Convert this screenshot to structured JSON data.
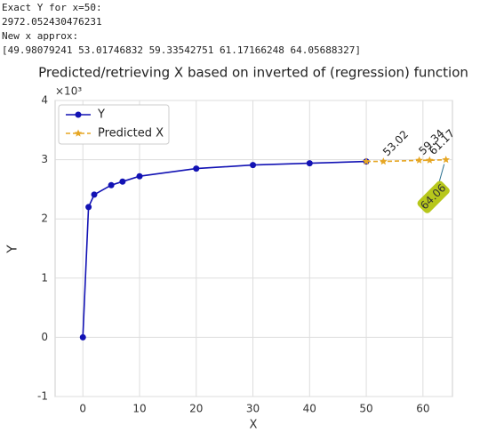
{
  "console": [
    "Exact Y for x=50:",
    "2972.052430476231",
    "New x approx:",
    "[49.98079241 53.01746832 59.33542751 61.17166248 64.05688327]"
  ],
  "chart_data": {
    "type": "line",
    "title": "Predicted/retrieving X based on inverted of (regression) function",
    "x_label": "X",
    "y_label": "Y",
    "y_offset_label": "×10³",
    "xlim": [
      -4.9,
      65.2
    ],
    "xticks": [
      0,
      10,
      20,
      30,
      40,
      50,
      60
    ],
    "ylim": [
      -1,
      4
    ],
    "yticks": [
      -1,
      0,
      1,
      2,
      3,
      4
    ],
    "grid": true,
    "legend_loc": "upper left",
    "series": [
      {
        "name": "Y",
        "color": "#1212b4",
        "marker": "circle",
        "dashed": false,
        "x": [
          0,
          1,
          2,
          5,
          7,
          10,
          20,
          30,
          40,
          50
        ],
        "values": [
          0,
          2.2,
          2.41,
          2.57,
          2.63,
          2.72,
          2.85,
          2.91,
          2.94,
          2.97
        ]
      },
      {
        "name": "Predicted X",
        "color": "#e6a623",
        "marker": "star",
        "dashed": true,
        "x": [
          49.98079241,
          53.01746832,
          59.33542751,
          61.17166248,
          64.05688327
        ],
        "values": [
          2.97,
          2.97,
          2.99,
          2.99,
          3.0
        ],
        "value_labels": [
          null,
          "53.02",
          "59.34",
          "61.17",
          "64.06"
        ],
        "highlight_index": 4,
        "highlight_color": "#b7c71b"
      }
    ]
  }
}
